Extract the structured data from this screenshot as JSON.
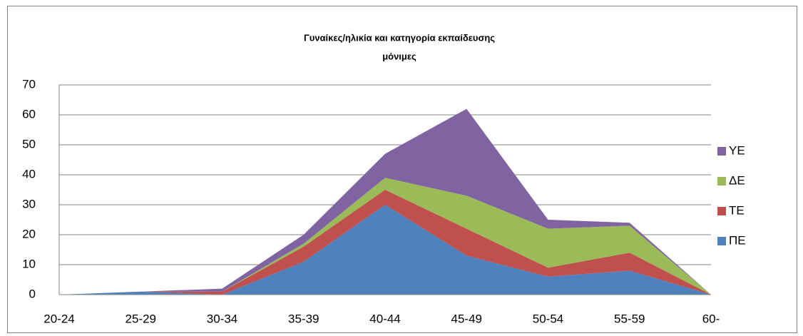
{
  "chart_data": {
    "type": "stacked_area",
    "title": "Γυναίκες/ηλικία και κατηγορία εκπαίδευσης",
    "subtitle": "μόνιμες",
    "categories": [
      "20-24",
      "25-29",
      "30-34",
      "35-39",
      "40-44",
      "45-49",
      "50-54",
      "55-59",
      "60-"
    ],
    "series": [
      {
        "name": "ΠΕ",
        "color": "#4f81bd",
        "values": [
          0,
          1,
          0,
          11,
          30,
          13,
          6,
          8,
          0
        ]
      },
      {
        "name": "ΤΕ",
        "color": "#c0504d",
        "values": [
          0,
          0,
          1,
          5,
          5,
          9,
          3,
          6,
          0
        ]
      },
      {
        "name": "ΔΕ",
        "color": "#9bbb59",
        "values": [
          0,
          0,
          0,
          1,
          4,
          11,
          13,
          9,
          0
        ]
      },
      {
        "name": "ΥΕ",
        "color": "#8064a2",
        "values": [
          0,
          0,
          1,
          3,
          8,
          29,
          3,
          1,
          0
        ]
      }
    ],
    "ylim": [
      0,
      70
    ],
    "yticks": [
      0,
      10,
      20,
      30,
      40,
      50,
      60,
      70
    ],
    "grid": true,
    "legend": "right"
  }
}
